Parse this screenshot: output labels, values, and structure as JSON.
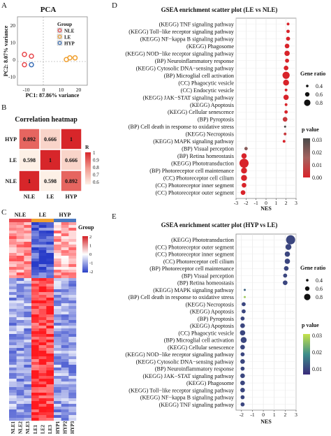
{
  "panels": {
    "A": {
      "letter": "A",
      "title": "PCA",
      "xlabel": "PC1: 87.86% variance",
      "ylabel": "PC2: 8.07% variance",
      "x_ticks": [
        "-10",
        "0",
        "10",
        "20"
      ],
      "y_ticks": [
        "-10",
        "0",
        "10",
        "20"
      ],
      "legend_title": "Group",
      "legend": [
        {
          "label": "NLE",
          "color": "#e8474c"
        },
        {
          "label": "LE",
          "color": "#f0a030"
        },
        {
          "label": "HYP",
          "color": "#3a6fb7"
        }
      ]
    },
    "B": {
      "letter": "B",
      "title": "Correlation heatmap",
      "legend_title": "R",
      "legend_ticks": [
        "1",
        "0.9",
        "0.8",
        "0.7",
        "0.6"
      ]
    },
    "C": {
      "letter": "C",
      "legend_title": "Group",
      "scale_ticks": [
        "2",
        "1",
        "0",
        "-1",
        "-2"
      ],
      "group_labels": [
        "NLE",
        "LE",
        "HYP"
      ],
      "samples": [
        "NLE1",
        "NLE2",
        "NLE3",
        "LE1",
        "LE2",
        "LE3",
        "HYP1",
        "HYP2",
        "HYP3"
      ]
    },
    "D": {
      "letter": "D",
      "title": "GSEA enrichment scatter plot (LE vs NLE)",
      "xlabel": "NES",
      "x_ticks": [
        "-3",
        "-2",
        "-1",
        "0",
        "1",
        "2",
        "3"
      ],
      "size_title": "Gene ratio",
      "size_ticks": [
        "0.4",
        "0.6",
        "0.8"
      ],
      "color_title": "p value",
      "color_ticks": [
        "0.03",
        "0.02",
        "0.01",
        "0.00"
      ]
    },
    "E": {
      "letter": "E",
      "title": "GSEA enrichment scatter plot (HYP vs LE)",
      "xlabel": "NES",
      "x_ticks": [
        "-2",
        "-1",
        "0",
        "1",
        "2",
        "3"
      ],
      "size_title": "Gene ratio",
      "size_ticks": [
        "0.4",
        "0.6",
        "0.8"
      ],
      "color_title": "p value",
      "color_ticks": [
        "0.03",
        "0.02",
        "0.01"
      ]
    }
  },
  "chart_data": [
    {
      "type": "scatter",
      "title": "PCA",
      "xlabel": "PC1: 87.86% variance",
      "ylabel": "PC2: 8.07% variance",
      "xlim": [
        -15,
        25
      ],
      "ylim": [
        -15,
        25
      ],
      "series": [
        {
          "name": "NLE",
          "x": [
            -11,
            -7,
            -11
          ],
          "y": [
            3,
            2,
            -3
          ]
        },
        {
          "name": "LE",
          "x": [
            13,
            15,
            18
          ],
          "y": [
            0,
            1,
            1
          ]
        },
        {
          "name": "HYP",
          "x": [
            -7
          ],
          "y": [
            -3
          ]
        }
      ]
    },
    {
      "type": "heatmap",
      "title": "Correlation heatmap",
      "rows": [
        "HYP",
        "LE",
        "NLE"
      ],
      "columns": [
        "NLE",
        "LE",
        "HYP"
      ],
      "values": [
        [
          0.892,
          0.666,
          1
        ],
        [
          0.598,
          1,
          0.666
        ],
        [
          1,
          0.598,
          0.892
        ]
      ],
      "range": [
        0.6,
        1
      ]
    },
    {
      "type": "scatter",
      "title": "GSEA enrichment scatter plot (LE vs NLE)",
      "xlabel": "NES",
      "xlim": [
        -3,
        3
      ],
      "terms": [
        "(KEGG) TNF signaling pathway",
        "(KEGG) Toll−like receptor signaling pathway",
        "(KEGG) NF−kappa B signaling pathway",
        "(KEGG) Phagosome",
        "(KEGG) NOD−like receptor signaling pathway",
        "(BP) Neuroinflammatory response",
        "(KEGG) Cytosolic DNA−sensing pathway",
        "(BP) Microglial cell activation",
        "(CC) Phagocytic vesicle",
        "(CC) Endocytic vesicle",
        "(KEGG) JAK−STAT signaling pathway",
        "(KEGG) Apoptosis",
        "(KEGG) Cellular senescence",
        "(BP) Pyroptosis",
        "(BP) Cell death in response to oxidative stress",
        "(KEGG) Necroptosis",
        "(KEGG) MAPK signaling pathway",
        "(BP) Visual perception",
        "(BP) Retina homeostasis",
        "(KEGG) Phototransduction",
        "(BP) Photoreceptor cell maintenance",
        "(CC) Photoreceptor cell cilium",
        "(CC) Photoreceptor inner segment",
        "(CC) Photoreceptor outer segment"
      ],
      "nes": [
        2.2,
        2.2,
        2.2,
        2.1,
        2.1,
        2.1,
        2.0,
        2.0,
        2.0,
        2.0,
        2.0,
        2.0,
        2.0,
        1.9,
        1.9,
        1.9,
        1.8,
        -2.0,
        -2.2,
        -2.2,
        -2.2,
        -2.2,
        -2.2,
        -2.3
      ],
      "gene_ratio": [
        0.35,
        0.4,
        0.45,
        0.5,
        0.55,
        0.45,
        0.5,
        0.7,
        0.6,
        0.35,
        0.55,
        0.35,
        0.4,
        0.5,
        0.3,
        0.35,
        0.35,
        0.4,
        0.55,
        0.85,
        0.6,
        0.6,
        0.5,
        0.5
      ],
      "p_value": [
        0.0,
        0.0,
        0.0,
        0.0,
        0.0,
        0.0,
        0.0,
        0.0,
        0.0,
        0.0,
        0.0,
        0.0,
        0.0,
        0.005,
        0.03,
        0.005,
        0.0,
        0.02,
        0.0,
        0.0,
        0.0,
        0.0,
        0.0,
        0.0
      ],
      "size_range": [
        0.3,
        0.9
      ],
      "p_range": [
        0,
        0.03
      ]
    },
    {
      "type": "scatter",
      "title": "GSEA enrichment scatter plot (HYP vs LE)",
      "xlabel": "NES",
      "xlim": [
        -2.5,
        3
      ],
      "terms": [
        "(KEGG) Phototransduction",
        "(CC) Photoreceptor outer segment",
        "(CC) Photoreceptor inner segment",
        "(CC) Photoreceptor cell cilium",
        "(BP) Photoreceptor cell maintenance",
        "(BP) Visual perception",
        "(BP) Retina homeostasis",
        "(KEGG) MAPK signaling pathway",
        "(BP) Cell death in response to oxidative stress",
        "(KEGG) Necroptosis",
        "(KEGG) Apoptosis",
        "(BP) Pyroptosis",
        "(KEGG) Apoptosis",
        "(CC) Phagocytic vesicle",
        "(BP) Microglial cell activation",
        "(KEGG) Cellular senescence",
        "(KEGG) NOD−like receptor signaling pathway",
        "(KEGG) Cytosolic DNA−sensing pathway",
        "(BP) Neuroinflammatory response",
        "(KEGG) JAK−STAT signaling pathway",
        "(KEGG) Phagosome",
        "(KEGG) Toll−like receptor signaling pathway",
        "(KEGG) NF−kappa B signaling pathway",
        "(KEGG) TNF signaling pathway"
      ],
      "nes": [
        2.5,
        2.3,
        2.2,
        2.2,
        2.1,
        2.0,
        2.0,
        -1.7,
        -1.7,
        -1.8,
        -1.8,
        -1.9,
        -1.9,
        -1.9,
        -1.8,
        -1.9,
        -1.9,
        -1.9,
        -1.9,
        -1.9,
        -1.9,
        -1.9,
        -1.9,
        -1.9
      ],
      "gene_ratio": [
        0.85,
        0.6,
        0.55,
        0.55,
        0.5,
        0.45,
        0.5,
        0.3,
        0.3,
        0.45,
        0.45,
        0.45,
        0.5,
        0.55,
        0.6,
        0.5,
        0.45,
        0.5,
        0.45,
        0.5,
        0.5,
        0.5,
        0.45,
        0.45
      ],
      "p_value": [
        0.005,
        0.005,
        0.005,
        0.005,
        0.005,
        0.005,
        0.005,
        0.01,
        0.03,
        0.005,
        0.005,
        0.005,
        0.005,
        0.005,
        0.005,
        0.005,
        0.005,
        0.005,
        0.005,
        0.005,
        0.005,
        0.005,
        0.005,
        0.005
      ],
      "size_range": [
        0.3,
        0.9
      ],
      "p_range": [
        0,
        0.035
      ]
    }
  ]
}
